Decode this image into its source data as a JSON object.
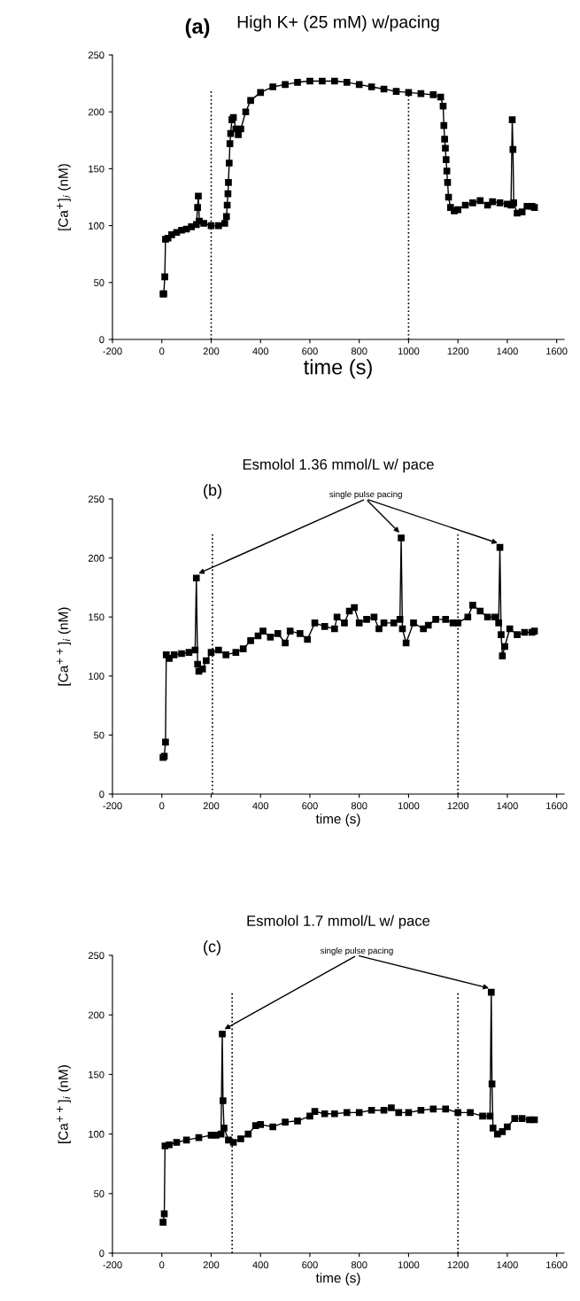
{
  "chart_data": [
    {
      "type": "line",
      "title": "High K+ (25 mM) w/pacing",
      "xlabel": "time (s)",
      "ylabel": "[Ca$^{+}$]$_{i}$ (nM)",
      "marker": "square",
      "line_style": "solid",
      "annotations": [
        "(a)"
      ],
      "xlim": [
        -200,
        1630
      ],
      "xticks": [
        -200,
        0,
        200,
        400,
        600,
        800,
        1000,
        1200,
        1400,
        1600
      ],
      "ylim": [
        0,
        250
      ],
      "yticks": [
        0,
        50,
        100,
        150,
        200,
        250
      ],
      "ref_lines": [
        {
          "axis": "x",
          "value": 200,
          "line_style": "dotted"
        },
        {
          "axis": "x",
          "value": 1000,
          "line_style": "dotted"
        }
      ],
      "series": [
        {
          "color": "#000000",
          "x": [
            5,
            8,
            12,
            15,
            25,
            40,
            60,
            80,
            100,
            120,
            140,
            145,
            148,
            152,
            170,
            200,
            230,
            255,
            262,
            265,
            268,
            270,
            273,
            276,
            279,
            284,
            290,
            300,
            310,
            320,
            340,
            360,
            400,
            450,
            500,
            550,
            600,
            650,
            700,
            750,
            800,
            850,
            900,
            950,
            1000,
            1050,
            1100,
            1130,
            1140,
            1143,
            1146,
            1149,
            1152,
            1155,
            1158,
            1162,
            1170,
            1185,
            1200,
            1230,
            1260,
            1290,
            1320,
            1340,
            1370,
            1400,
            1415,
            1420,
            1423,
            1426,
            1440,
            1460,
            1480,
            1500,
            1510
          ],
          "values": [
            40,
            40,
            55,
            88,
            89,
            92,
            94,
            96,
            97,
            99,
            101,
            116,
            126,
            104,
            102,
            100,
            100,
            102,
            108,
            118,
            128,
            138,
            155,
            172,
            181,
            193,
            195,
            185,
            180,
            185,
            200,
            210,
            217,
            222,
            224,
            226,
            227,
            227,
            227,
            226,
            224,
            222,
            220,
            218,
            217,
            216,
            215,
            213,
            205,
            188,
            176,
            168,
            158,
            148,
            138,
            125,
            116,
            113,
            114,
            118,
            120,
            122,
            118,
            121,
            120,
            119,
            118,
            193,
            167,
            120,
            111,
            112,
            117,
            117,
            116
          ]
        }
      ]
    },
    {
      "type": "line",
      "title": "Esmolol 1.36 mmol/L w/ pace",
      "xlabel": "time (s)",
      "ylabel": "[Ca$^{++}$]$_{i}$ (nM)",
      "marker": "square",
      "line_style": "solid",
      "annotations": [
        "(b)",
        {
          "text": "single pulse pacing",
          "x": 140,
          "y": 183
        }
      ],
      "xlim": [
        -200,
        1630
      ],
      "xticks": [
        -200,
        0,
        200,
        400,
        600,
        800,
        1000,
        1200,
        1400,
        1600
      ],
      "ylim": [
        0,
        250
      ],
      "yticks": [
        0,
        50,
        100,
        150,
        200,
        250
      ],
      "ref_lines": [
        {
          "axis": "x",
          "value": 205,
          "line_style": "dotted"
        },
        {
          "axis": "x",
          "value": 1200,
          "line_style": "dotted"
        }
      ],
      "series": [
        {
          "color": "#000000",
          "x": [
            5,
            10,
            15,
            18,
            30,
            50,
            80,
            110,
            135,
            140,
            145,
            150,
            165,
            180,
            200,
            230,
            260,
            300,
            330,
            360,
            390,
            410,
            440,
            470,
            500,
            520,
            560,
            590,
            620,
            660,
            700,
            710,
            740,
            760,
            780,
            800,
            830,
            860,
            880,
            900,
            940,
            965,
            970,
            975,
            990,
            1020,
            1060,
            1080,
            1110,
            1150,
            1180,
            1200,
            1240,
            1260,
            1290,
            1320,
            1350,
            1365,
            1370,
            1375,
            1380,
            1390,
            1410,
            1440,
            1470,
            1500,
            1510
          ],
          "values": [
            31,
            32,
            44,
            118,
            115,
            118,
            119,
            120,
            122,
            183,
            110,
            104,
            106,
            113,
            120,
            122,
            118,
            120,
            123,
            130,
            134,
            138,
            133,
            136,
            128,
            138,
            136,
            131,
            145,
            142,
            140,
            150,
            145,
            155,
            158,
            145,
            148,
            150,
            140,
            145,
            145,
            148,
            217,
            140,
            128,
            145,
            140,
            143,
            148,
            148,
            145,
            145,
            150,
            160,
            155,
            150,
            150,
            145,
            209,
            135,
            117,
            125,
            140,
            135,
            137,
            137,
            138
          ]
        }
      ]
    },
    {
      "type": "line",
      "title": "Esmolol 1.7 mmol/L w/ pace",
      "xlabel": "time (s)",
      "ylabel": "[Ca$^{++}$]$_{i}$ (nM)",
      "marker": "square",
      "line_style": "solid",
      "annotations": [
        "(c)",
        {
          "text": "single pulse pacing",
          "x": 245,
          "y": 184
        }
      ],
      "xlim": [
        -200,
        1630
      ],
      "xticks": [
        -200,
        0,
        200,
        400,
        600,
        800,
        1000,
        1200,
        1400,
        1600
      ],
      "ylim": [
        0,
        250
      ],
      "yticks": [
        0,
        50,
        100,
        150,
        200,
        250
      ],
      "ref_lines": [
        {
          "axis": "x",
          "value": 285,
          "line_style": "dotted"
        },
        {
          "axis": "x",
          "value": 1200,
          "line_style": "dotted"
        }
      ],
      "series": [
        {
          "color": "#000000",
          "x": [
            5,
            10,
            13,
            30,
            60,
            100,
            150,
            200,
            220,
            240,
            245,
            248,
            252,
            270,
            290,
            320,
            350,
            380,
            400,
            450,
            500,
            550,
            600,
            620,
            660,
            700,
            750,
            800,
            850,
            900,
            930,
            960,
            1000,
            1050,
            1100,
            1150,
            1200,
            1250,
            1300,
            1330,
            1335,
            1338,
            1342,
            1360,
            1380,
            1400,
            1430,
            1460,
            1490,
            1510
          ],
          "values": [
            26,
            33,
            90,
            91,
            93,
            95,
            97,
            99,
            99,
            100,
            184,
            128,
            105,
            95,
            93,
            96,
            100,
            107,
            108,
            106,
            110,
            111,
            115,
            119,
            117,
            117,
            118,
            118,
            120,
            120,
            122,
            118,
            118,
            120,
            121,
            121,
            118,
            118,
            115,
            115,
            219,
            142,
            105,
            100,
            102,
            106,
            113,
            113,
            112,
            112
          ]
        }
      ]
    }
  ]
}
